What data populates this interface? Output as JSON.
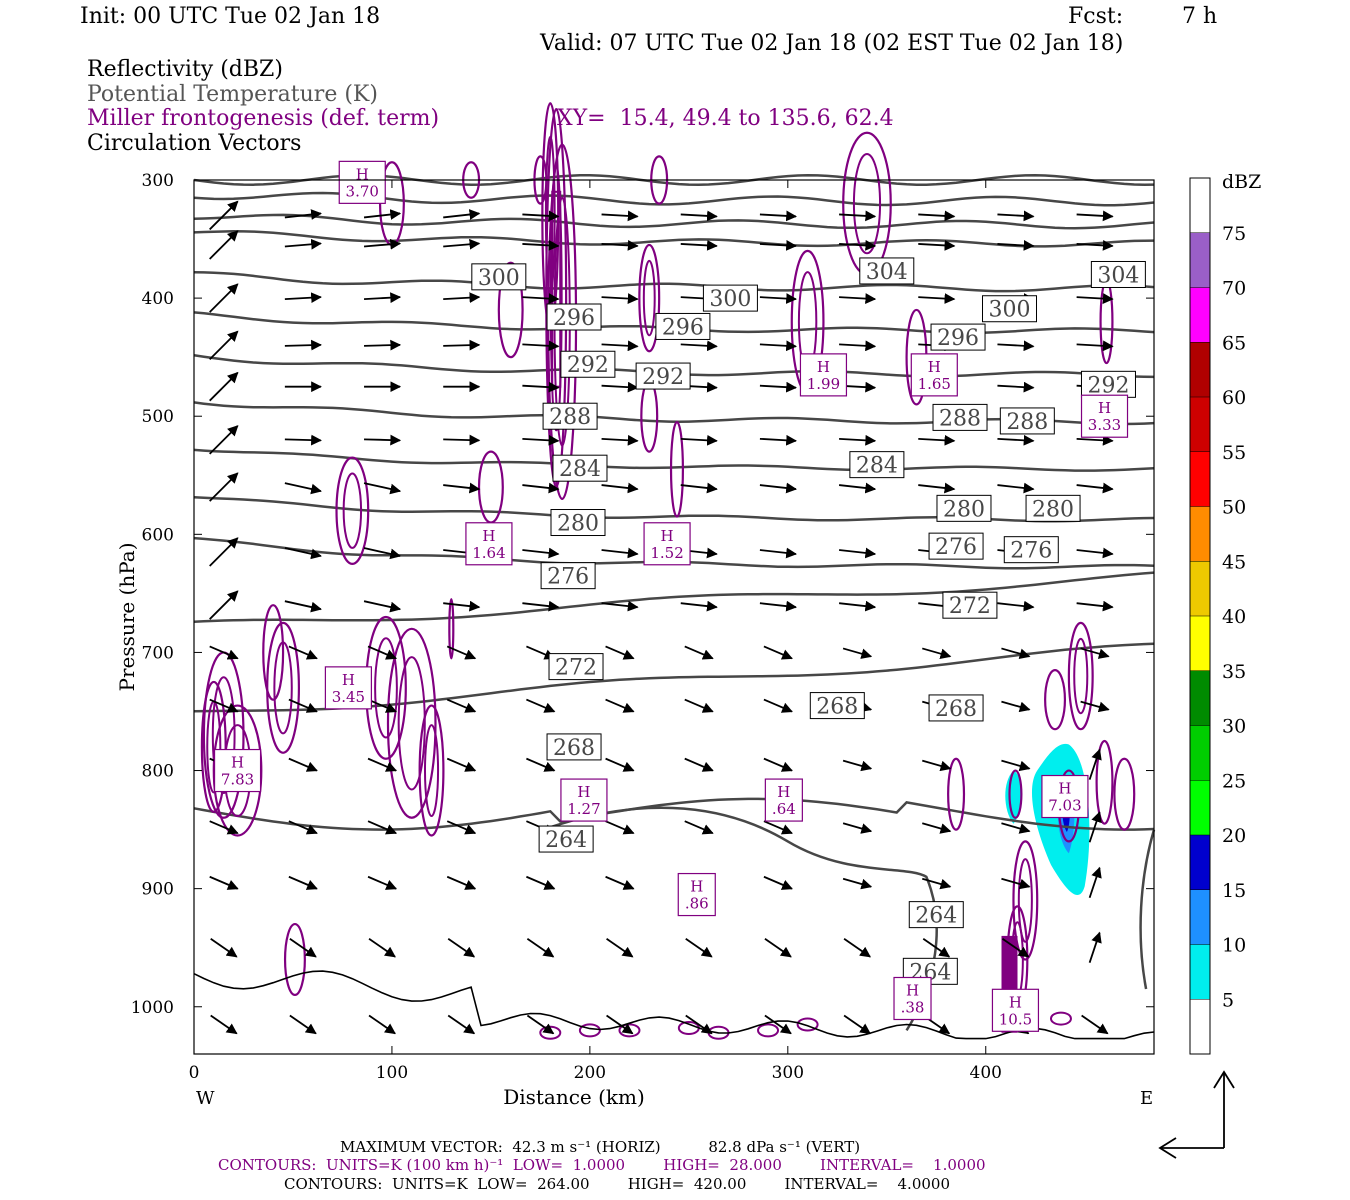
{
  "header": {
    "init": "Init: 00 UTC Tue 02 Jan 18",
    "fcst_label": "Fcst:",
    "fcst_value": "7 h",
    "valid": "Valid: 07 UTC Tue 02 Jan 18 (02 EST Tue 02 Jan 18)",
    "fields": [
      {
        "text": "Reflectivity (dBZ)",
        "color": "#000000"
      },
      {
        "text": "Potential Temperature (K)",
        "color": "#555555"
      },
      {
        "text": "Miller frontogenesis (def. term)",
        "color": "#800080"
      },
      {
        "text": "Circulation Vectors",
        "color": "#000000"
      }
    ],
    "xy": "XY=  15.4, 49.4 to 135.6, 62.4"
  },
  "chart_data": {
    "type": "cross-section",
    "xlabel": "Distance (km)",
    "ylabel": "Pressure (hPa)",
    "xlim": [
      0,
      485
    ],
    "ylim": [
      300,
      1040
    ],
    "x_ticks": [
      "0",
      "100",
      "200",
      "300",
      "400"
    ],
    "y_ticks": [
      "300",
      "400",
      "500",
      "600",
      "700",
      "800",
      "900",
      "1000"
    ],
    "x_left_label": "W",
    "x_right_label": "E",
    "colorbar": {
      "title": "dBZ",
      "labels": [
        "5",
        "10",
        "15",
        "20",
        "25",
        "30",
        "35",
        "40",
        "45",
        "50",
        "55",
        "60",
        "65",
        "70",
        "75"
      ],
      "colors": [
        "#ffffff",
        "#00eeee",
        "#1e90ff",
        "#0000cd",
        "#00ff00",
        "#00cd00",
        "#008b00",
        "#ffff00",
        "#eec900",
        "#ff8c00",
        "#ff0000",
        "#cd0000",
        "#b00000",
        "#ff00ff",
        "#9a5fc8",
        "#ffffff"
      ]
    },
    "theta_labels": [
      {
        "x": 154,
        "p": 382,
        "v": "300"
      },
      {
        "x": 350,
        "p": 377,
        "v": "304"
      },
      {
        "x": 467,
        "p": 380,
        "v": "304"
      },
      {
        "x": 271,
        "p": 400,
        "v": "300"
      },
      {
        "x": 412,
        "p": 409,
        "v": "300"
      },
      {
        "x": 192,
        "p": 416,
        "v": "296"
      },
      {
        "x": 247,
        "p": 424,
        "v": "296"
      },
      {
        "x": 386,
        "p": 433,
        "v": "296"
      },
      {
        "x": 199,
        "p": 456,
        "v": "292"
      },
      {
        "x": 237,
        "p": 466,
        "v": "292"
      },
      {
        "x": 462,
        "p": 473,
        "v": "292"
      },
      {
        "x": 190,
        "p": 500,
        "v": "288"
      },
      {
        "x": 387,
        "p": 501,
        "v": "288"
      },
      {
        "x": 421,
        "p": 504,
        "v": "288"
      },
      {
        "x": 195,
        "p": 544,
        "v": "284"
      },
      {
        "x": 345,
        "p": 541,
        "v": "284"
      },
      {
        "x": 389,
        "p": 578,
        "v": "280"
      },
      {
        "x": 434,
        "p": 578,
        "v": "280"
      },
      {
        "x": 194,
        "p": 590,
        "v": "280"
      },
      {
        "x": 189,
        "p": 635,
        "v": "276"
      },
      {
        "x": 385,
        "p": 610,
        "v": "276"
      },
      {
        "x": 423,
        "p": 613,
        "v": "276"
      },
      {
        "x": 392,
        "p": 660,
        "v": "272"
      },
      {
        "x": 193,
        "p": 712,
        "v": "272"
      },
      {
        "x": 325,
        "p": 745,
        "v": "268"
      },
      {
        "x": 385,
        "p": 747,
        "v": "268"
      },
      {
        "x": 192,
        "p": 780,
        "v": "268"
      },
      {
        "x": 188,
        "p": 858,
        "v": "264"
      },
      {
        "x": 375,
        "p": 922,
        "v": "264"
      },
      {
        "x": 372,
        "p": 970,
        "v": "264"
      }
    ],
    "fronto_maxima": [
      {
        "x": 22,
        "p": 800,
        "v": "7.83"
      },
      {
        "x": 78,
        "p": 730,
        "v": "3.45"
      },
      {
        "x": 149,
        "p": 608,
        "v": "1.64"
      },
      {
        "x": 197,
        "p": 825,
        "v": "1.27"
      },
      {
        "x": 239,
        "p": 608,
        "v": "1.52"
      },
      {
        "x": 254,
        "p": 905,
        "v": ".86"
      },
      {
        "x": 298,
        "p": 825,
        "v": ".64"
      },
      {
        "x": 318,
        "p": 465,
        "v": "1.99"
      },
      {
        "x": 374,
        "p": 465,
        "v": "1.65"
      },
      {
        "x": 363,
        "p": 993,
        "v": ".38"
      },
      {
        "x": 415,
        "p": 1003,
        "v": "10.5"
      },
      {
        "x": 440,
        "p": 822,
        "v": "7.03"
      },
      {
        "x": 460,
        "p": 500,
        "v": "3.33"
      },
      {
        "x": 85,
        "p": 302,
        "v": "3.70"
      }
    ],
    "fronto_max_marker": "H",
    "theta_units": "K",
    "vector_max_horiz": "42.3",
    "vector_max_vert": "82.8"
  },
  "footer": {
    "max_vector": "MAXIMUM VECTOR:  42.3 m s⁻¹ (HORIZ)          82.8 dPa s⁻¹ (VERT)",
    "contours_fronto": "CONTOURS:  UNITS=K (100 km h)⁻¹  LOW=  1.0000        HIGH=  28.000        INTERVAL=    1.0000",
    "contours_theta": "CONTOURS:  UNITS=K  LOW=  264.00        HIGH=  420.00        INTERVAL=    4.0000"
  },
  "colors": {
    "theta": "#474747",
    "fronto": "#800080",
    "vector": "#000000",
    "frame": "#000000"
  }
}
